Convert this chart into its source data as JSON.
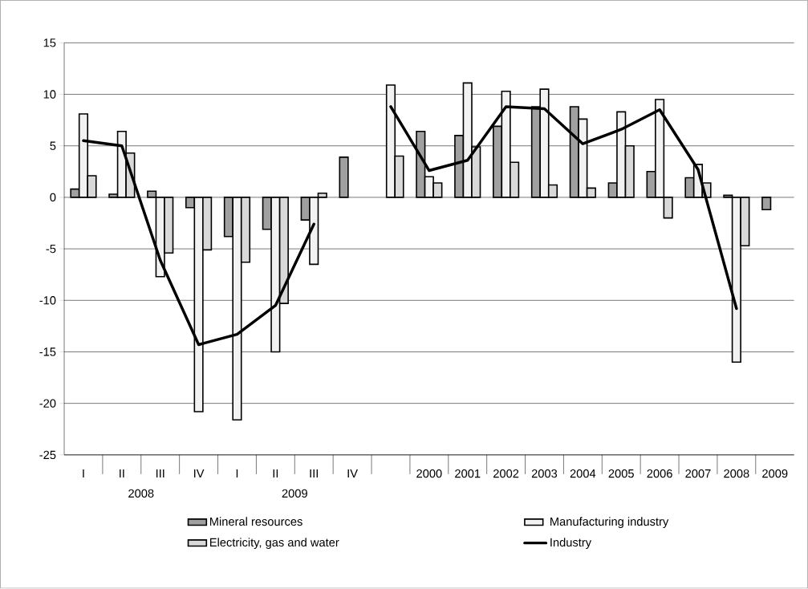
{
  "chart_data": {
    "type": "bar",
    "categories": [
      "I",
      "II",
      "III",
      "IV",
      "I",
      "II",
      "III",
      "IV",
      null,
      "2000",
      "2001",
      "2002",
      "2003",
      "2004",
      "2005",
      "2006",
      "2007",
      "2008",
      "2009"
    ],
    "series": [
      {
        "name": "Mineral resources",
        "color": "#a0a0a0",
        "values": [
          0.8,
          0.3,
          0.6,
          -1.0,
          -3.8,
          -3.1,
          -2.2,
          3.9,
          null,
          6.4,
          6.0,
          6.9,
          8.8,
          8.8,
          1.4,
          2.5,
          1.9,
          0.2,
          -1.2
        ]
      },
      {
        "name": "Manufacturing industry",
        "color": "#f2f2f2",
        "values": [
          8.1,
          6.4,
          -7.7,
          -20.8,
          -21.6,
          -15.0,
          -6.5,
          null,
          10.9,
          2.0,
          11.1,
          10.3,
          10.5,
          7.6,
          8.3,
          9.5,
          3.2,
          -16.0,
          null
        ]
      },
      {
        "name": "Electricity, gas and water",
        "color": "#d9d9d9",
        "values": [
          2.1,
          4.3,
          -5.4,
          -5.1,
          -6.3,
          -10.3,
          0.4,
          null,
          4.0,
          1.4,
          4.9,
          3.4,
          1.2,
          0.9,
          5.0,
          -2.0,
          1.4,
          -4.7,
          null
        ]
      },
      {
        "name": "Industry",
        "type": "line",
        "color": "#000000",
        "values": [
          5.5,
          5.0,
          -6.1,
          -14.3,
          -13.3,
          -10.5,
          -2.6,
          null,
          8.8,
          2.6,
          3.6,
          8.8,
          8.6,
          5.2,
          6.6,
          8.5,
          2.7,
          -10.8,
          null
        ]
      }
    ],
    "annotations": [
      "2008",
      "2009"
    ],
    "ylim": [
      -25,
      15
    ],
    "yticks": [
      -25,
      -20,
      -15,
      -10,
      -5,
      0,
      5,
      10,
      15
    ],
    "grid": "y",
    "legend": "bottom"
  }
}
